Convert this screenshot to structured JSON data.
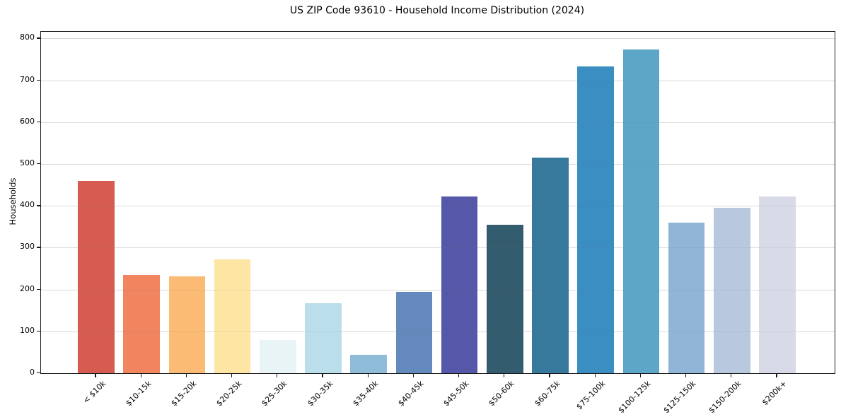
{
  "chart_data": {
    "type": "bar",
    "title": "US ZIP Code 93610 - Household Income Distribution (2024)",
    "xlabel": "",
    "ylabel": "Households",
    "categories": [
      "< $10k",
      "$10-15k",
      "$15-20k",
      "$20-25k",
      "$25-30k",
      "$30-35k",
      "$35-40k",
      "$40-45k",
      "$45-50k",
      "$50-60k",
      "$60-75k",
      "$75-100k",
      "$100-125k",
      "$125-150k",
      "$150-200k",
      "$200k+"
    ],
    "values": [
      459,
      235,
      232,
      272,
      80,
      168,
      44,
      195,
      422,
      355,
      516,
      734,
      774,
      360,
      395,
      423
    ],
    "bar_colors": [
      "#d65c52",
      "#f0855f",
      "#fbbb75",
      "#fde5a3",
      "#e9f4f6",
      "#bbdeeb",
      "#8fbcd9",
      "#6389bd",
      "#5557a8",
      "#335c6e",
      "#36799c",
      "#3a8ec2",
      "#5ea6c8",
      "#90b5d6",
      "#b8c8de",
      "#d9dae8"
    ],
    "yticks": [
      0,
      100,
      200,
      300,
      400,
      500,
      600,
      700,
      800
    ],
    "ylim": [
      0,
      816
    ],
    "grid": "horizontal-light-gray",
    "legend": "none",
    "colors": {
      "background": "#ffffff",
      "grid": "#e7e7e7",
      "spine": "#1a1a1a",
      "text": "#000000"
    }
  }
}
